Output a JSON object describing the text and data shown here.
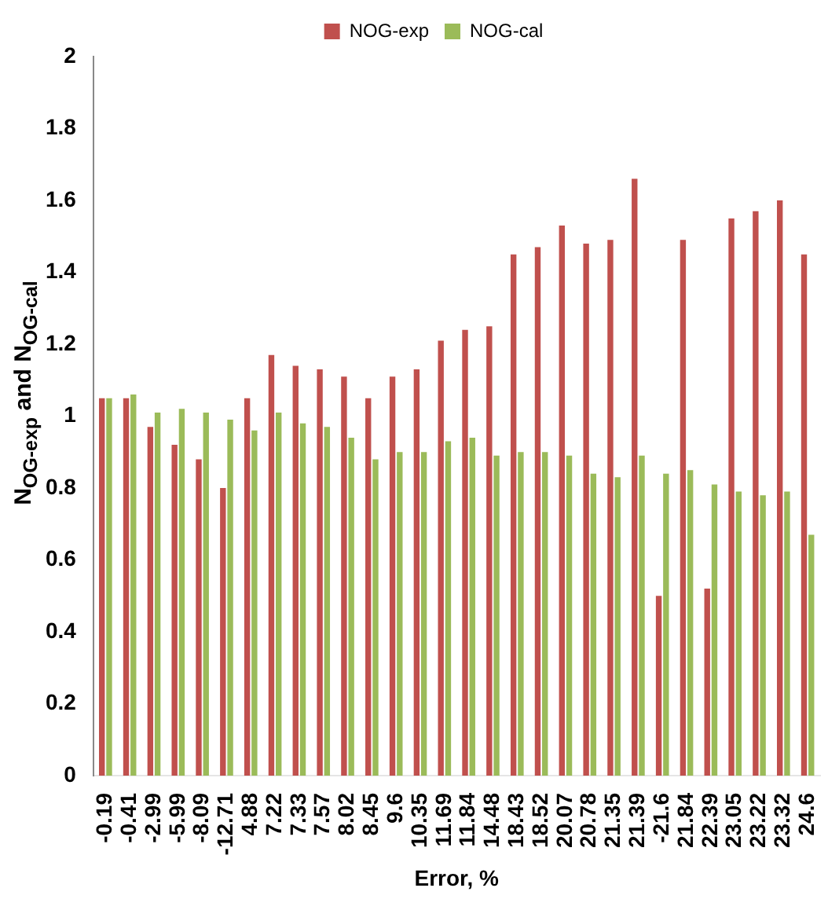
{
  "chart_data": {
    "type": "bar",
    "xlabel": "Error, %",
    "ylabel": "N$_{OG-exp}$ and N$_{OG-cal}$",
    "categories": [
      "-0.19",
      "-0.41",
      "-2.99",
      "-5.99",
      "-8.09",
      "-12.71",
      "4.88",
      "7.22",
      "7.33",
      "7.57",
      "8.02",
      "8.45",
      "9.6",
      "10.35",
      "11.69",
      "11.84",
      "14.48",
      "18.43",
      "18.52",
      "20.07",
      "20.78",
      "21.35",
      "21.39",
      "-21.6",
      "21.84",
      "22.39",
      "23.05",
      "23.22",
      "23.32",
      "24.6"
    ],
    "series": [
      {
        "name": "NOG-exp",
        "color": "#c0504d",
        "values": [
          1.05,
          1.05,
          0.97,
          0.92,
          0.88,
          0.8,
          1.05,
          1.17,
          1.14,
          1.13,
          1.11,
          1.05,
          1.11,
          1.13,
          1.21,
          1.24,
          1.25,
          1.45,
          1.47,
          1.53,
          1.48,
          1.49,
          1.66,
          0.5,
          1.49,
          0.52,
          1.55,
          1.57,
          1.6,
          1.45
        ]
      },
      {
        "name": "NOG-cal",
        "color": "#9bbb59",
        "values": [
          1.05,
          1.06,
          1.01,
          1.02,
          1.01,
          0.99,
          0.96,
          1.01,
          0.98,
          0.97,
          0.94,
          0.88,
          0.9,
          0.9,
          0.93,
          0.94,
          0.89,
          0.9,
          0.9,
          0.89,
          0.84,
          0.83,
          0.89,
          0.84,
          0.85,
          0.81,
          0.79,
          0.78,
          0.79,
          0.67
        ]
      }
    ],
    "ylim": [
      0,
      2
    ],
    "yticks": [
      0,
      0.2,
      0.4,
      0.6,
      0.8,
      1,
      1.2,
      1.4,
      1.6,
      1.8,
      2
    ],
    "grid": false,
    "legend": "top"
  }
}
